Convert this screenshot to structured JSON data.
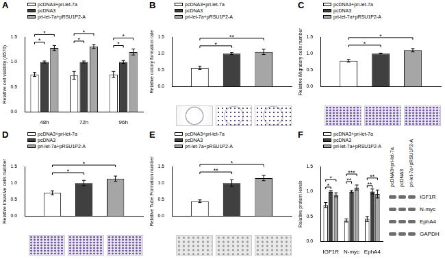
{
  "chart_data": [
    {
      "type": "bar",
      "title": "A",
      "categories": [
        "48h",
        "72h",
        "96h"
      ],
      "series": [
        {
          "name": "pcDNA3+pri-let-7a",
          "color": "#ffffff",
          "values": [
            0.75,
            0.73,
            0.75
          ],
          "errors": [
            0.04,
            0.08,
            0.06
          ]
        },
        {
          "name": "pcDNA3",
          "color": "#404040",
          "values": [
            1.0,
            1.0,
            1.0
          ],
          "errors": [
            0.02,
            0.02,
            0.03
          ]
        },
        {
          "name": "pri-let-7a+pRSU1P2-A",
          "color": "#a6a6a6",
          "values": [
            1.28,
            1.31,
            1.2
          ],
          "errors": [
            0.05,
            0.04,
            0.06
          ]
        }
      ],
      "y_label": "Relative cell viability (A570)",
      "ylim": [
        0,
        1.5
      ],
      "yticks": [
        {
          "value": 0,
          "label": "0.0"
        },
        {
          "value": 0.5,
          "label": "0.5"
        },
        {
          "value": 1,
          "label": "1.0"
        },
        {
          "value": 1.5,
          "label": "1.5"
        }
      ],
      "grid": false,
      "legend": "top-left",
      "annotations": [
        {
          "category": "48h",
          "between": [
            "pcDNA3+pri-let-7a",
            "pcDNA3"
          ],
          "label": "*"
        },
        {
          "category": "48h",
          "between": [
            "pcDNA3+pri-let-7a",
            "pri-let-7a+pRSU1P2-A"
          ],
          "label": "*"
        },
        {
          "category": "72h",
          "between": [
            "pcDNA3+pri-let-7a",
            "pcDNA3"
          ],
          "label": "*"
        },
        {
          "category": "72h",
          "between": [
            "pcDNA3+pri-let-7a",
            "pri-let-7a+pRSU1P2-A"
          ],
          "label": "*"
        },
        {
          "category": "96h",
          "between": [
            "pcDNA3+pri-let-7a",
            "pcDNA3"
          ],
          "label": "*"
        },
        {
          "category": "96h",
          "between": [
            "pcDNA3+pri-let-7a",
            "pri-let-7a+pRSU1P2-A"
          ],
          "label": "*"
        }
      ]
    },
    {
      "type": "bar",
      "title": "B",
      "categories": [
        null
      ],
      "series": [
        {
          "name": "pcDNA3+pri-let-7a",
          "color": "#ffffff",
          "values": [
            0.57
          ],
          "errors": [
            0.05
          ]
        },
        {
          "name": "pcDNA3",
          "color": "#404040",
          "values": [
            1.0
          ],
          "errors": [
            0.03
          ]
        },
        {
          "name": "pri-let-7a+pRSU1P2-A",
          "color": "#a6a6a6",
          "values": [
            1.05
          ],
          "errors": [
            0.08
          ]
        }
      ],
      "y_label": "Relative colony formation rate",
      "ylim": [
        0,
        1.5
      ],
      "yticks": [
        {
          "value": 0,
          "label": "0.0"
        },
        {
          "value": 0.5,
          "label": "0.5"
        },
        {
          "value": 1,
          "label": "1.0"
        },
        {
          "value": 1.5,
          "label": "1.5"
        }
      ],
      "grid": false,
      "legend": "top-left",
      "annotations": [
        {
          "category": null,
          "between": [
            "pcDNA3+pri-let-7a",
            "pcDNA3"
          ],
          "label": "*"
        },
        {
          "category": null,
          "between": [
            "pcDNA3+pri-let-7a",
            "pri-let-7a+pRSU1P2-A"
          ],
          "label": "**"
        }
      ]
    },
    {
      "type": "bar",
      "title": "C",
      "categories": [
        null
      ],
      "series": [
        {
          "name": "pcDNA3+pri-let-7a",
          "color": "#ffffff",
          "values": [
            0.78
          ],
          "errors": [
            0.04
          ]
        },
        {
          "name": "pcDNA3",
          "color": "#404040",
          "values": [
            1.0
          ],
          "errors": [
            0.01
          ]
        },
        {
          "name": "pri-let-7a+pRSU1P2-A",
          "color": "#a6a6a6",
          "values": [
            1.1
          ],
          "errors": [
            0.05
          ]
        }
      ],
      "y_label": "Relative Migratory cells number",
      "ylim": [
        0,
        1.5
      ],
      "yticks": [
        {
          "value": 0,
          "label": "0.0"
        },
        {
          "value": 0.5,
          "label": "0.5"
        },
        {
          "value": 1,
          "label": "1.0"
        },
        {
          "value": 1.5,
          "label": "1.5"
        }
      ],
      "grid": false,
      "legend": "top-left",
      "annotations": [
        {
          "category": null,
          "between": [
            "pcDNA3+pri-let-7a",
            "pcDNA3"
          ],
          "label": "*"
        },
        {
          "category": null,
          "between": [
            "pcDNA3+pri-let-7a",
            "pri-let-7a+pRSU1P2-A"
          ],
          "label": "*"
        }
      ]
    },
    {
      "type": "bar",
      "title": "D",
      "categories": [
        null
      ],
      "series": [
        {
          "name": "pcDNA3+pri-let-7a",
          "color": "#ffffff",
          "values": [
            0.7
          ],
          "errors": [
            0.06
          ]
        },
        {
          "name": "pcDNA3",
          "color": "#404040",
          "values": [
            1.0
          ],
          "errors": [
            0.08
          ]
        },
        {
          "name": "pri-let-7a+pRSU1P2-A",
          "color": "#a6a6a6",
          "values": [
            1.13
          ],
          "errors": [
            0.08
          ]
        }
      ],
      "y_label": "Relative Invasive cells number",
      "ylim": [
        0,
        1.5
      ],
      "yticks": [
        {
          "value": 0,
          "label": "0.0"
        },
        {
          "value": 0.5,
          "label": "0.5"
        },
        {
          "value": 1,
          "label": "1.0"
        },
        {
          "value": 1.5,
          "label": "1.5"
        }
      ],
      "grid": false,
      "legend": "top-left",
      "annotations": [
        {
          "category": null,
          "between": [
            "pcDNA3+pri-let-7a",
            "pcDNA3"
          ],
          "label": "*"
        },
        {
          "category": null,
          "between": [
            "pcDNA3+pri-let-7a",
            "pri-let-7a+pRSU1P2-A"
          ],
          "label": "*"
        }
      ]
    },
    {
      "type": "bar",
      "title": "E",
      "categories": [
        null
      ],
      "series": [
        {
          "name": "pcDNA3+pri-let-7a",
          "color": "#ffffff",
          "values": [
            0.45
          ],
          "errors": [
            0.04
          ]
        },
        {
          "name": "pcDNA3",
          "color": "#404040",
          "values": [
            1.0
          ],
          "errors": [
            0.1
          ]
        },
        {
          "name": "pri-let-7a+pRSU1P2-A",
          "color": "#a6a6a6",
          "values": [
            1.15
          ],
          "errors": [
            0.08
          ]
        }
      ],
      "y_label": "Relative Tube Formation number",
      "ylim": [
        0,
        1.5
      ],
      "yticks": [
        {
          "value": 0,
          "label": "0.0"
        },
        {
          "value": 0.5,
          "label": "0.5"
        },
        {
          "value": 1,
          "label": "1.0"
        },
        {
          "value": 1.5,
          "label": "1.5"
        }
      ],
      "grid": false,
      "legend": "top-left",
      "annotations": [
        {
          "category": null,
          "between": [
            "pcDNA3+pri-let-7a",
            "pcDNA3"
          ],
          "label": "**"
        },
        {
          "category": null,
          "between": [
            "pcDNA3+pri-let-7a",
            "pri-let-7a+pRSU1P2-A"
          ],
          "label": "*"
        }
      ]
    },
    {
      "type": "bar",
      "title": "F",
      "categories": [
        "IGF1R",
        "N-myc",
        "EphA4"
      ],
      "series": [
        {
          "name": "pcDNA3+pri-let-7a",
          "color": "#ffffff",
          "values": [
            0.73,
            0.42,
            0.45
          ],
          "errors": [
            0.05,
            0.03,
            0.05
          ]
        },
        {
          "name": "pcDNA3",
          "color": "#404040",
          "values": [
            1.0,
            1.0,
            1.0
          ],
          "errors": [
            0.02,
            0.02,
            0.05
          ]
        },
        {
          "name": "pri-let-7a+pRSU1P2-A",
          "color": "#a6a6a6",
          "values": [
            0.93,
            1.08,
            0.95
          ],
          "errors": [
            0.04,
            0.05,
            0.08
          ]
        }
      ],
      "y_label": "Relative protein levels",
      "ylim": [
        0,
        1.5
      ],
      "yticks": [
        {
          "value": 0,
          "label": "0.0"
        },
        {
          "value": 0.5,
          "label": "0.5"
        },
        {
          "value": 1,
          "label": "1.0"
        },
        {
          "value": 1.5,
          "label": "1.5"
        }
      ],
      "grid": false,
      "legend": "top-left",
      "annotations": [
        {
          "category": "IGF1R",
          "between": [
            "pcDNA3+pri-let-7a",
            "pcDNA3"
          ],
          "label": "*"
        },
        {
          "category": "IGF1R",
          "between": [
            "pcDNA3+pri-let-7a",
            "pri-let-7a+pRSU1P2-A"
          ],
          "label": "*"
        },
        {
          "category": "N-myc",
          "between": [
            "pcDNA3+pri-let-7a",
            "pcDNA3"
          ],
          "label": "**"
        },
        {
          "category": "N-myc",
          "between": [
            "pcDNA3+pri-let-7a",
            "pri-let-7a+pRSU1P2-A"
          ],
          "label": "***"
        },
        {
          "category": "EphA4",
          "between": [
            "pcDNA3+pri-let-7a",
            "pcDNA3"
          ],
          "label": "**"
        },
        {
          "category": "EphA4",
          "between": [
            "pcDNA3+pri-let-7a",
            "pri-let-7a+pRSU1P2-A"
          ],
          "label": "**"
        }
      ]
    }
  ],
  "blot": {
    "lanes": [
      "pcDNA3+pri-let-7a",
      "pcDNA3",
      "pri-let-7a+pRSU1P2-A"
    ],
    "rows": [
      "IGF1R",
      "N-myc",
      "EphA4",
      "GAPDH"
    ]
  }
}
